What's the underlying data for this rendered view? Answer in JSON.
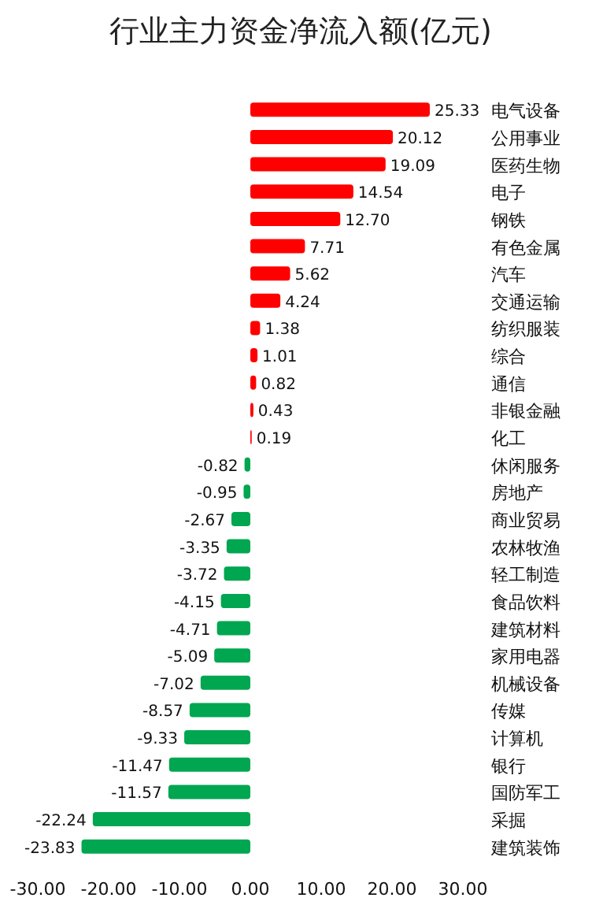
{
  "chart_data": {
    "type": "bar",
    "orientation": "horizontal",
    "title": "行业主力资金净流入额(亿元)",
    "categories": [
      "电气设备",
      "公用事业",
      "医药生物",
      "电子",
      "钢铁",
      "有色金属",
      "汽车",
      "交通运输",
      "纺织服装",
      "综合",
      "通信",
      "非银金融",
      "化工",
      "休闲服务",
      "房地产",
      "商业贸易",
      "农林牧渔",
      "轻工制造",
      "食品饮料",
      "建筑材料",
      "家用电器",
      "机械设备",
      "传媒",
      "计算机",
      "银行",
      "国防军工",
      "采掘",
      "建筑装饰"
    ],
    "values": [
      25.33,
      20.12,
      19.09,
      14.54,
      12.7,
      7.71,
      5.62,
      4.24,
      1.38,
      1.01,
      0.82,
      0.43,
      0.19,
      -0.82,
      -0.95,
      -2.67,
      -3.35,
      -3.72,
      -4.15,
      -4.71,
      -5.09,
      -7.02,
      -8.57,
      -9.33,
      -11.47,
      -11.57,
      -22.24,
      -23.83
    ],
    "value_labels": [
      "25.33",
      "20.12",
      "19.09",
      "14.54",
      "12.70",
      "7.71",
      "5.62",
      "4.24",
      "1.38",
      "1.01",
      "0.82",
      "0.43",
      "0.19",
      "-0.82",
      "-0.95",
      "-2.67",
      "-3.35",
      "-3.72",
      "-4.15",
      "-4.71",
      "-5.09",
      "-7.02",
      "-8.57",
      "-9.33",
      "-11.47",
      "-11.57",
      "-22.24",
      "-23.83"
    ],
    "colors": [
      "#ff0000",
      "#ff0000",
      "#ff0000",
      "#ff0000",
      "#ff0000",
      "#ff0000",
      "#ff0000",
      "#ff0000",
      "#ff0000",
      "#ff0000",
      "#ff0000",
      "#ff0000",
      "#ff0000",
      "#00a650",
      "#00a650",
      "#00a650",
      "#00a650",
      "#00a650",
      "#00a650",
      "#00a650",
      "#00a650",
      "#00a650",
      "#00a650",
      "#00a650",
      "#00a650",
      "#00a650",
      "#00a650",
      "#00a650"
    ],
    "xlim": [
      -30,
      30
    ],
    "xticks": [
      {
        "value": -30,
        "label": "-30.00"
      },
      {
        "value": -20,
        "label": "-20.00"
      },
      {
        "value": -10,
        "label": "-10.00"
      },
      {
        "value": 0,
        "label": "0.00"
      },
      {
        "value": 10,
        "label": "10.00"
      },
      {
        "value": 20,
        "label": "20.00"
      },
      {
        "value": 30,
        "label": "30.00"
      }
    ],
    "grid": false
  }
}
